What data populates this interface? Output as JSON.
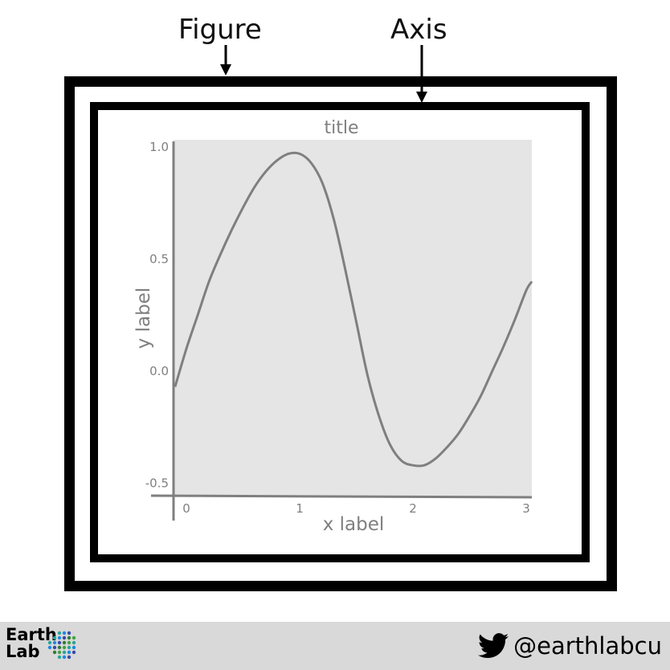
{
  "callouts": {
    "figure": "Figure",
    "axis": "Axis"
  },
  "plot": {
    "title": "title",
    "xlabel": "x label",
    "ylabel": "y label"
  },
  "chart_data": {
    "type": "line",
    "title": "title",
    "xlabel": "x label",
    "ylabel": "y label",
    "xlim": [
      0,
      3
    ],
    "ylim": [
      -0.5,
      1.0
    ],
    "x_ticks": [
      0,
      1,
      2,
      3
    ],
    "y_ticks": [
      -0.5,
      0.0,
      0.5,
      1.0
    ],
    "x_tick_labels": [
      "0",
      "1",
      "2",
      "3"
    ],
    "y_tick_labels": [
      "-0.5",
      "0.0",
      "0.5",
      "1.0"
    ],
    "grid": false,
    "series": [
      {
        "x": [
          -0.1,
          0.0,
          0.1,
          0.2,
          0.3,
          0.4,
          0.5,
          0.6,
          0.7,
          0.8,
          0.9,
          1.0,
          1.1,
          1.2,
          1.3,
          1.4,
          1.5,
          1.6,
          1.7,
          1.8,
          1.9,
          2.0,
          2.1,
          2.2,
          2.3,
          2.4,
          2.5,
          2.6,
          2.7,
          2.8,
          2.9,
          3.0,
          3.05
        ],
        "y": [
          -0.07,
          0.1,
          0.25,
          0.4,
          0.52,
          0.63,
          0.73,
          0.82,
          0.89,
          0.94,
          0.97,
          0.97,
          0.93,
          0.84,
          0.68,
          0.46,
          0.22,
          -0.02,
          -0.2,
          -0.33,
          -0.4,
          -0.42,
          -0.42,
          -0.39,
          -0.34,
          -0.28,
          -0.2,
          -0.11,
          -0.0,
          0.11,
          0.23,
          0.36,
          0.4
        ]
      }
    ],
    "colors": {
      "line": "#7f7f7f",
      "plot_background": "#e5e5e5",
      "axes": "#7f7f7f"
    }
  },
  "footer": {
    "logo_line1": "Earth",
    "logo_line2": "Lab",
    "twitter_handle": "@earthlabcu",
    "background": "#d9d9d9"
  }
}
